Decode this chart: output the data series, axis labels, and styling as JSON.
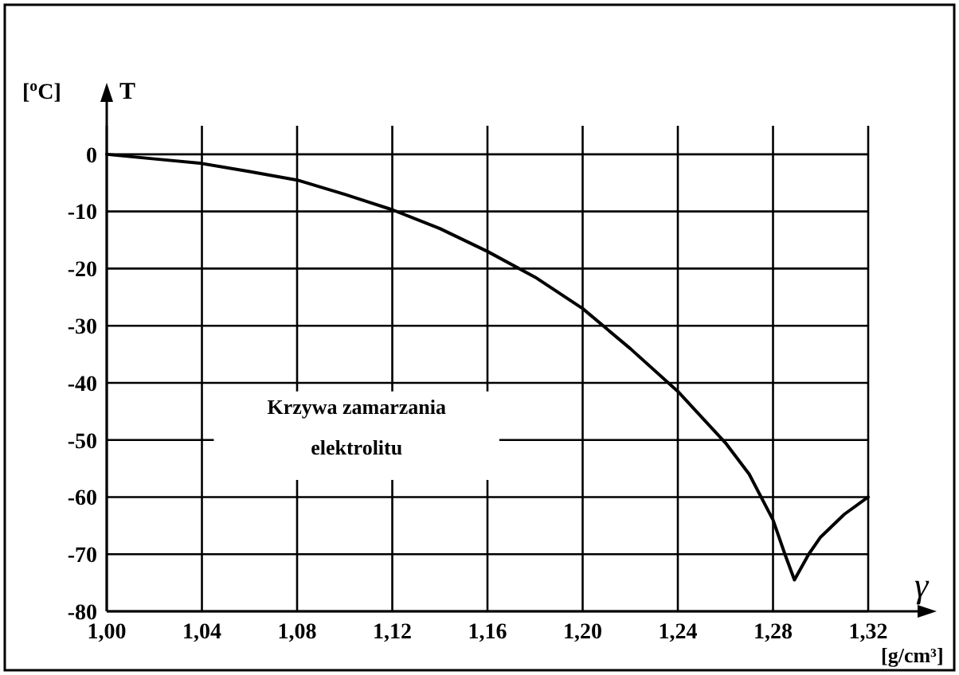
{
  "chart_data": {
    "type": "line",
    "xlabel": "γ",
    "ylabel": "T",
    "annotations": [
      "[$^{o}$C]",
      "[g/cm³]",
      "Krzywa zamarzania elektrolitu"
    ],
    "x": [
      1.0,
      1.02,
      1.04,
      1.06,
      1.08,
      1.1,
      1.12,
      1.14,
      1.16,
      1.18,
      1.2,
      1.22,
      1.24,
      1.26,
      1.27,
      1.28,
      1.285,
      1.289,
      1.295,
      1.3,
      1.31,
      1.32
    ],
    "series": [
      {
        "color": "#000000",
        "values": [
          0,
          -0.8,
          -1.6,
          -3,
          -4.5,
          -7,
          -9.7,
          -13,
          -17,
          -21.5,
          -27,
          -34,
          -41.5,
          -50.5,
          -56,
          -64,
          -70,
          -74.5,
          -70,
          -67,
          -63,
          -60
        ]
      }
    ],
    "xlim": [
      1.0,
      1.32
    ],
    "xticks": [
      {
        "value": 1.0,
        "label": "1,00"
      },
      {
        "value": 1.04,
        "label": "1,04"
      },
      {
        "value": 1.08,
        "label": "1,08"
      },
      {
        "value": 1.12,
        "label": "1,12"
      },
      {
        "value": 1.16,
        "label": "1,16"
      },
      {
        "value": 1.2,
        "label": "1,20"
      },
      {
        "value": 1.24,
        "label": "1,24"
      },
      {
        "value": 1.28,
        "label": "1,28"
      },
      {
        "value": 1.32,
        "label": "1,32"
      }
    ],
    "ylim": [
      -80,
      5
    ],
    "yticks": [
      0,
      -10,
      -20,
      -30,
      -40,
      -50,
      -60,
      -70,
      -80
    ],
    "grid": true,
    "marker": "none",
    "line_style": "solid"
  }
}
